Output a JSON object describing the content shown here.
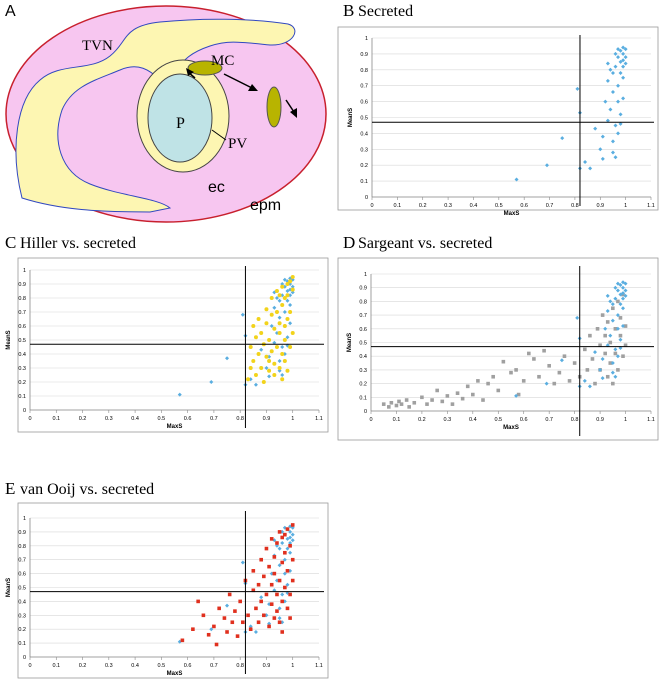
{
  "diagram": {
    "panel": "A",
    "labels": [
      "TVN",
      "MC",
      "P",
      "PV",
      "ec",
      "epm"
    ]
  },
  "chart_data": [
    {
      "type": "scatter",
      "panel": "B",
      "title": "Secreted",
      "x_label": "MaxS",
      "y_label": "MeanS",
      "xlim": [
        0,
        1.1
      ],
      "ylim": [
        0,
        1
      ],
      "xticks": [
        0,
        0.1,
        0.2,
        0.3,
        0.4,
        0.5,
        0.6,
        0.7,
        0.8,
        0.9,
        1,
        1.1
      ],
      "yticks": [
        0,
        0.1,
        0.2,
        0.3,
        0.4,
        0.5,
        0.6,
        0.7,
        0.8,
        0.9,
        1
      ],
      "reference_lines": {
        "x": 0.82,
        "y": 0.47
      },
      "series": [
        {
          "color": "#5aaee0",
          "marker": "diamond",
          "x": [
            0.57,
            0.69,
            0.75,
            0.81,
            0.82,
            0.82,
            0.84,
            0.86,
            0.88,
            0.9,
            0.91,
            0.91,
            0.92,
            0.93,
            0.93,
            0.94,
            0.94,
            0.95,
            0.95,
            0.95,
            0.96,
            0.96,
            0.96,
            0.97,
            0.97,
            0.97,
            0.97,
            0.98,
            0.98,
            0.98,
            0.98,
            0.98,
            0.99,
            0.99,
            0.99,
            0.99,
            0.99,
            1,
            1,
            1,
            0.97,
            0.96,
            0.95,
            0.99,
            0.93
          ],
          "values": [
            0.11,
            0.2,
            0.37,
            0.68,
            0.53,
            0.18,
            0.22,
            0.18,
            0.43,
            0.3,
            0.24,
            0.38,
            0.6,
            0.73,
            0.48,
            0.55,
            0.8,
            0.35,
            0.66,
            0.28,
            0.82,
            0.45,
            0.25,
            0.88,
            0.7,
            0.6,
            0.4,
            0.92,
            0.85,
            0.78,
            0.52,
            0.46,
            0.94,
            0.9,
            0.86,
            0.82,
            0.75,
            0.93,
            0.88,
            0.84,
            0.93,
            0.9,
            0.78,
            0.62,
            0.84
          ]
        }
      ]
    },
    {
      "type": "scatter",
      "panel": "C",
      "title": "Hiller vs. secreted",
      "x_label": "MaxS",
      "y_label": "MeanS",
      "xlim": [
        0,
        1.1
      ],
      "ylim": [
        0,
        1
      ],
      "xticks": [
        0,
        0.1,
        0.2,
        0.3,
        0.4,
        0.5,
        0.6,
        0.7,
        0.8,
        0.9,
        1,
        1.1
      ],
      "yticks": [
        0,
        0.1,
        0.2,
        0.3,
        0.4,
        0.5,
        0.6,
        0.7,
        0.8,
        0.9,
        1
      ],
      "reference_lines": {
        "x": 0.82,
        "y": 0.47
      },
      "series": [
        {
          "color": "#5aaee0",
          "marker": "diamond",
          "x": [
            0.57,
            0.69,
            0.75,
            0.81,
            0.82,
            0.82,
            0.84,
            0.86,
            0.88,
            0.9,
            0.91,
            0.91,
            0.92,
            0.93,
            0.93,
            0.94,
            0.94,
            0.95,
            0.95,
            0.95,
            0.96,
            0.96,
            0.96,
            0.97,
            0.97,
            0.97,
            0.97,
            0.98,
            0.98,
            0.98,
            0.98,
            0.98,
            0.99,
            0.99,
            0.99,
            0.99,
            0.99,
            1,
            1,
            1,
            0.97,
            0.96,
            0.95,
            0.99,
            0.93
          ],
          "values": [
            0.11,
            0.2,
            0.37,
            0.68,
            0.53,
            0.18,
            0.22,
            0.18,
            0.43,
            0.3,
            0.24,
            0.38,
            0.6,
            0.73,
            0.48,
            0.55,
            0.8,
            0.35,
            0.66,
            0.28,
            0.82,
            0.45,
            0.25,
            0.88,
            0.7,
            0.6,
            0.4,
            0.92,
            0.85,
            0.78,
            0.52,
            0.46,
            0.94,
            0.9,
            0.86,
            0.82,
            0.75,
            0.93,
            0.88,
            0.84,
            0.93,
            0.9,
            0.78,
            0.62,
            0.84
          ]
        },
        {
          "color": "#f2d31b",
          "marker": "circle",
          "x": [
            0.83,
            0.84,
            0.84,
            0.85,
            0.85,
            0.86,
            0.86,
            0.87,
            0.87,
            0.88,
            0.88,
            0.89,
            0.89,
            0.9,
            0.9,
            0.9,
            0.91,
            0.91,
            0.92,
            0.92,
            0.92,
            0.93,
            0.93,
            0.93,
            0.94,
            0.94,
            0.94,
            0.95,
            0.95,
            0.95,
            0.96,
            0.96,
            0.96,
            0.96,
            0.97,
            0.97,
            0.97,
            0.98,
            0.98,
            0.98,
            0.98,
            0.99,
            0.99,
            0.99,
            1,
            1,
            1,
            0.97,
            0.95,
            0.91
          ],
          "values": [
            0.22,
            0.3,
            0.45,
            0.6,
            0.35,
            0.52,
            0.25,
            0.4,
            0.65,
            0.55,
            0.3,
            0.47,
            0.2,
            0.62,
            0.38,
            0.72,
            0.28,
            0.5,
            0.42,
            0.68,
            0.8,
            0.33,
            0.58,
            0.25,
            0.45,
            0.7,
            0.85,
            0.3,
            0.55,
            0.62,
            0.4,
            0.75,
            0.88,
            0.22,
            0.5,
            0.8,
            0.35,
            0.9,
            0.65,
            0.28,
            0.82,
            0.92,
            0.45,
            0.7,
            0.86,
            0.55,
            0.95,
            0.6,
            0.82,
            0.35
          ]
        }
      ]
    },
    {
      "type": "scatter",
      "panel": "D",
      "title": "Sargeant vs. secreted",
      "x_label": "MaxS",
      "y_label": "MeanS",
      "xlim": [
        0,
        1.1
      ],
      "ylim": [
        0,
        1
      ],
      "xticks": [
        0,
        0.1,
        0.2,
        0.3,
        0.4,
        0.5,
        0.6,
        0.7,
        0.8,
        0.9,
        1,
        1.1
      ],
      "yticks": [
        0,
        0.1,
        0.2,
        0.3,
        0.4,
        0.5,
        0.6,
        0.7,
        0.8,
        0.9,
        1
      ],
      "reference_lines": {
        "x": 0.82,
        "y": 0.47
      },
      "series": [
        {
          "color": "#a0a0a0",
          "marker": "square",
          "x": [
            0.05,
            0.07,
            0.08,
            0.1,
            0.11,
            0.12,
            0.14,
            0.15,
            0.17,
            0.2,
            0.22,
            0.24,
            0.26,
            0.28,
            0.3,
            0.32,
            0.34,
            0.36,
            0.38,
            0.4,
            0.42,
            0.44,
            0.46,
            0.48,
            0.5,
            0.52,
            0.55,
            0.57,
            0.58,
            0.6,
            0.62,
            0.64,
            0.66,
            0.68,
            0.7,
            0.72,
            0.74,
            0.76,
            0.78,
            0.8,
            0.82,
            0.84,
            0.85,
            0.86,
            0.87,
            0.88,
            0.89,
            0.9,
            0.9,
            0.91,
            0.92,
            0.92,
            0.93,
            0.93,
            0.94,
            0.94,
            0.95,
            0.95,
            0.96,
            0.96,
            0.97,
            0.97,
            0.98,
            0.98,
            0.99,
            0.99,
            1,
            1
          ],
          "values": [
            0.05,
            0.03,
            0.06,
            0.04,
            0.07,
            0.05,
            0.08,
            0.03,
            0.06,
            0.1,
            0.05,
            0.08,
            0.15,
            0.07,
            0.11,
            0.05,
            0.13,
            0.09,
            0.18,
            0.12,
            0.22,
            0.08,
            0.2,
            0.25,
            0.15,
            0.36,
            0.28,
            0.3,
            0.12,
            0.22,
            0.42,
            0.38,
            0.25,
            0.44,
            0.33,
            0.2,
            0.28,
            0.4,
            0.22,
            0.35,
            0.25,
            0.45,
            0.3,
            0.55,
            0.38,
            0.2,
            0.6,
            0.48,
            0.3,
            0.7,
            0.42,
            0.55,
            0.25,
            0.65,
            0.5,
            0.35,
            0.75,
            0.2,
            0.6,
            0.42,
            0.8,
            0.3,
            0.55,
            0.68,
            0.4,
            0.85,
            0.62,
            0.48
          ]
        },
        {
          "color": "#5aaee0",
          "marker": "diamond",
          "x": [
            0.57,
            0.69,
            0.75,
            0.81,
            0.82,
            0.82,
            0.84,
            0.86,
            0.88,
            0.9,
            0.91,
            0.91,
            0.92,
            0.93,
            0.93,
            0.94,
            0.94,
            0.95,
            0.95,
            0.95,
            0.96,
            0.96,
            0.96,
            0.97,
            0.97,
            0.97,
            0.97,
            0.98,
            0.98,
            0.98,
            0.98,
            0.98,
            0.99,
            0.99,
            0.99,
            0.99,
            0.99,
            1,
            1,
            1,
            0.97,
            0.96,
            0.95,
            0.99,
            0.93
          ],
          "values": [
            0.11,
            0.2,
            0.37,
            0.68,
            0.53,
            0.18,
            0.22,
            0.18,
            0.43,
            0.3,
            0.24,
            0.38,
            0.6,
            0.73,
            0.48,
            0.55,
            0.8,
            0.35,
            0.66,
            0.28,
            0.82,
            0.45,
            0.25,
            0.88,
            0.7,
            0.6,
            0.4,
            0.92,
            0.85,
            0.78,
            0.52,
            0.46,
            0.94,
            0.9,
            0.86,
            0.82,
            0.75,
            0.93,
            0.88,
            0.84,
            0.93,
            0.9,
            0.78,
            0.62,
            0.84
          ]
        }
      ]
    },
    {
      "type": "scatter",
      "panel": "E",
      "title": "van Ooij vs. secreted",
      "x_label": "MaxS",
      "y_label": "MeanS",
      "xlim": [
        0,
        1.1
      ],
      "ylim": [
        0,
        1
      ],
      "xticks": [
        0,
        0.1,
        0.2,
        0.3,
        0.4,
        0.5,
        0.6,
        0.7,
        0.8,
        0.9,
        1,
        1.1
      ],
      "yticks": [
        0,
        0.1,
        0.2,
        0.3,
        0.4,
        0.5,
        0.6,
        0.7,
        0.8,
        0.9,
        1
      ],
      "reference_lines": {
        "x": 0.82,
        "y": 0.47
      },
      "series": [
        {
          "color": "#5aaee0",
          "marker": "diamond",
          "x": [
            0.57,
            0.69,
            0.75,
            0.81,
            0.82,
            0.82,
            0.84,
            0.86,
            0.88,
            0.9,
            0.91,
            0.91,
            0.92,
            0.93,
            0.93,
            0.94,
            0.94,
            0.95,
            0.95,
            0.95,
            0.96,
            0.96,
            0.96,
            0.97,
            0.97,
            0.97,
            0.97,
            0.98,
            0.98,
            0.98,
            0.98,
            0.98,
            0.99,
            0.99,
            0.99,
            0.99,
            0.99,
            1,
            1,
            1,
            0.97,
            0.96,
            0.95,
            0.99,
            0.93
          ],
          "values": [
            0.11,
            0.2,
            0.37,
            0.68,
            0.53,
            0.18,
            0.22,
            0.18,
            0.43,
            0.3,
            0.24,
            0.38,
            0.6,
            0.73,
            0.48,
            0.55,
            0.8,
            0.35,
            0.66,
            0.28,
            0.82,
            0.45,
            0.25,
            0.88,
            0.7,
            0.6,
            0.4,
            0.92,
            0.85,
            0.78,
            0.52,
            0.46,
            0.94,
            0.9,
            0.86,
            0.82,
            0.75,
            0.93,
            0.88,
            0.84,
            0.93,
            0.9,
            0.78,
            0.62,
            0.84
          ]
        },
        {
          "color": "#e0301e",
          "marker": "square",
          "x": [
            0.58,
            0.62,
            0.64,
            0.66,
            0.68,
            0.7,
            0.71,
            0.72,
            0.74,
            0.75,
            0.76,
            0.77,
            0.78,
            0.79,
            0.8,
            0.81,
            0.82,
            0.83,
            0.84,
            0.85,
            0.85,
            0.86,
            0.87,
            0.87,
            0.88,
            0.88,
            0.89,
            0.89,
            0.9,
            0.9,
            0.91,
            0.91,
            0.92,
            0.92,
            0.92,
            0.93,
            0.93,
            0.93,
            0.94,
            0.94,
            0.94,
            0.95,
            0.95,
            0.95,
            0.96,
            0.96,
            0.96,
            0.97,
            0.97,
            0.97,
            0.98,
            0.98,
            0.98,
            0.99,
            0.99,
            0.99,
            1,
            1,
            1,
            0.96
          ],
          "values": [
            0.12,
            0.2,
            0.4,
            0.3,
            0.16,
            0.22,
            0.09,
            0.35,
            0.28,
            0.18,
            0.45,
            0.25,
            0.33,
            0.15,
            0.4,
            0.25,
            0.55,
            0.3,
            0.2,
            0.48,
            0.62,
            0.35,
            0.25,
            0.52,
            0.7,
            0.4,
            0.3,
            0.58,
            0.45,
            0.78,
            0.22,
            0.65,
            0.38,
            0.52,
            0.85,
            0.28,
            0.6,
            0.72,
            0.45,
            0.33,
            0.82,
            0.55,
            0.25,
            0.9,
            0.4,
            0.68,
            0.18,
            0.75,
            0.5,
            0.88,
            0.35,
            0.62,
            0.92,
            0.45,
            0.8,
            0.28,
            0.7,
            0.95,
            0.55,
            0.86
          ]
        }
      ]
    }
  ]
}
